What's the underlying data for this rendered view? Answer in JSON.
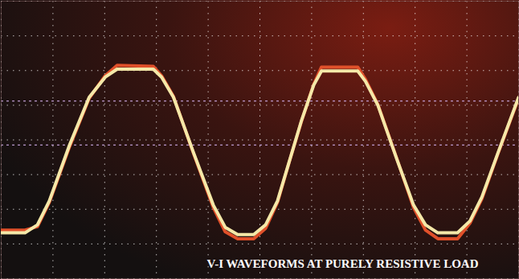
{
  "chart_data": {
    "type": "line",
    "title": "V-I WAVEFORMS AT PURELY RESISTIVE LOAD",
    "x": [
      0,
      0.46,
      0.7,
      0.93,
      1.32,
      1.7,
      2.01,
      2.24,
      2.94,
      3.1,
      3.33,
      3.72,
      4.1,
      4.33,
      4.57,
      4.88,
      5.11,
      5.34,
      5.57,
      5.8,
      6.04,
      6.19,
      6.89,
      7.04,
      7.28,
      7.66,
      7.97,
      8.2,
      8.44,
      8.82,
      9.06,
      9.29,
      9.6,
      10
    ],
    "series": [
      {
        "color": "#e0502a",
        "values": [
          -2.6,
          -2.6,
          -2.5,
          -1.8,
          -0.2,
          1.2,
          1.85,
          2.15,
          2.12,
          1.85,
          1.25,
          -0.4,
          -1.95,
          -2.65,
          -2.85,
          -2.85,
          -2.55,
          -1.8,
          -0.62,
          0.52,
          1.6,
          2.1,
          2.1,
          1.75,
          1.02,
          -0.6,
          -1.95,
          -2.6,
          -2.85,
          -2.85,
          -2.4,
          -1.7,
          -0.4,
          1.2
        ]
      },
      {
        "color": "#f4e8a8",
        "values": [
          -2.68,
          -2.68,
          -2.45,
          -1.76,
          -0.15,
          1.23,
          1.81,
          2.04,
          2.04,
          1.81,
          1.23,
          -0.38,
          -1.88,
          -2.52,
          -2.73,
          -2.73,
          -2.45,
          -1.76,
          -0.61,
          0.54,
          1.58,
          1.99,
          1.99,
          1.69,
          1.0,
          -0.61,
          -1.88,
          -2.45,
          -2.68,
          -2.68,
          -2.34,
          -1.65,
          -0.38,
          1.23
        ]
      }
    ],
    "cursor_levels": [
      1.12,
      -0.15
    ],
    "xlim": [
      0,
      10
    ],
    "ylim": [
      -4,
      4
    ],
    "xticks": [
      0,
      1,
      2,
      3,
      4,
      5,
      6,
      7,
      8,
      9,
      10
    ],
    "yticks": [
      -4,
      -3,
      -2,
      -1,
      0,
      1,
      2,
      3,
      4
    ],
    "grid": true,
    "tick_labels": false
  }
}
